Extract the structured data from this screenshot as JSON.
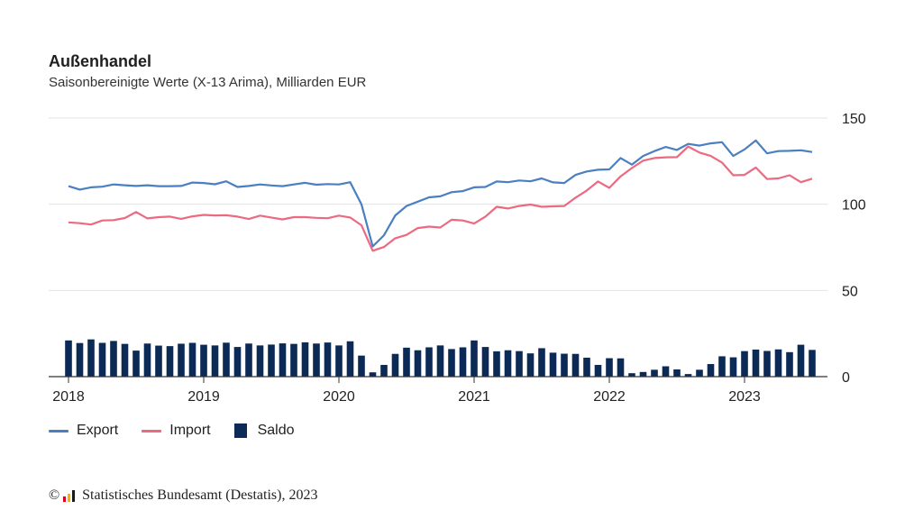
{
  "header": {
    "title": "Außenhandel",
    "subtitle": "Saisonbereinigte Werte (X-13 Arima), Milliarden EUR"
  },
  "legend": {
    "export_label": "Export",
    "import_label": "Import",
    "saldo_label": "Saldo"
  },
  "source": {
    "copyright": "©",
    "text": "Statistisches Bundesamt (Destatis), 2023"
  },
  "colors": {
    "export": "#4a7fc1",
    "import": "#ec6a80",
    "saldo": "#0b2a55",
    "grid": "#e3e3e3",
    "axis": "#333333",
    "logo": [
      "#e2001a",
      "#f5b400",
      "#1a1a1a"
    ]
  },
  "chart_data": {
    "type": "line",
    "title": "Außenhandel",
    "subtitle": "Saisonbereinigte Werte (X-13 Arima), Milliarden EUR",
    "x_start": "2018-01",
    "x_ticks": [
      "2018",
      "2019",
      "2020",
      "2021",
      "2022",
      "2023"
    ],
    "y_ticks": [
      0,
      50,
      100,
      150
    ],
    "ylim": [
      0,
      150
    ],
    "grid": true,
    "legend_position": "bottom-left",
    "series": [
      {
        "name": "Export",
        "type": "line",
        "values": [
          110.5,
          108.5,
          109.8,
          110.2,
          111.5,
          111.0,
          110.6,
          111.0,
          110.5,
          110.5,
          110.6,
          112.6,
          112.3,
          111.6,
          113.3,
          110.0,
          110.6,
          111.5,
          110.9,
          110.5,
          111.5,
          112.4,
          111.3,
          111.7,
          111.5,
          112.8,
          100.0,
          75.5,
          82.0,
          93.5,
          99.0,
          101.5,
          104.0,
          104.6,
          107.0,
          107.6,
          109.8,
          110.0,
          113.2,
          112.8,
          113.8,
          113.3,
          115.0,
          112.7,
          112.3,
          117.0,
          119.0,
          120.0,
          120.2,
          126.8,
          123.0,
          128.0,
          130.8,
          133.2,
          131.5,
          135.0,
          134.0,
          135.3,
          136.0,
          128.0,
          131.8,
          137.0,
          129.5,
          130.8,
          131.0,
          131.3,
          130.3
        ]
      },
      {
        "name": "Import",
        "type": "line",
        "values": [
          89.5,
          89.0,
          88.2,
          90.6,
          90.8,
          92.0,
          95.5,
          91.8,
          92.5,
          92.8,
          91.5,
          93.0,
          93.8,
          93.5,
          93.6,
          92.8,
          91.4,
          93.4,
          92.3,
          91.2,
          92.5,
          92.5,
          92.1,
          91.9,
          93.4,
          92.3,
          87.8,
          73.0,
          75.2,
          80.3,
          82.2,
          86.2,
          87.0,
          86.5,
          91.0,
          90.6,
          88.8,
          92.8,
          98.5,
          97.5,
          99.0,
          99.8,
          98.5,
          98.8,
          99.0,
          103.8,
          108.0,
          113.2,
          109.5,
          116.2,
          121.0,
          125.3,
          126.8,
          127.2,
          127.3,
          133.5,
          130.0,
          128.0,
          124.2,
          116.8,
          117.0,
          121.3,
          114.6,
          115.0,
          116.8,
          112.8,
          114.8
        ]
      },
      {
        "name": "Saldo",
        "type": "bar",
        "values": [
          21.0,
          19.5,
          21.6,
          19.6,
          20.7,
          19.0,
          15.1,
          19.2,
          18.0,
          17.7,
          19.1,
          19.6,
          18.5,
          18.1,
          19.7,
          17.2,
          19.2,
          18.1,
          18.6,
          19.3,
          19.0,
          19.9,
          19.2,
          19.8,
          18.1,
          20.5,
          12.2,
          2.5,
          6.8,
          13.2,
          16.8,
          15.3,
          17.0,
          18.1,
          16.0,
          17.0,
          21.0,
          17.2,
          14.7,
          15.3,
          14.8,
          13.5,
          16.5,
          13.9,
          13.3,
          13.2,
          11.0,
          6.8,
          10.7,
          10.6,
          2.0,
          2.7,
          4.0,
          6.0,
          4.2,
          1.5,
          4.0,
          7.3,
          11.8,
          11.2,
          14.8,
          15.7,
          14.9,
          15.8,
          14.2,
          18.5,
          15.5
        ]
      }
    ]
  }
}
